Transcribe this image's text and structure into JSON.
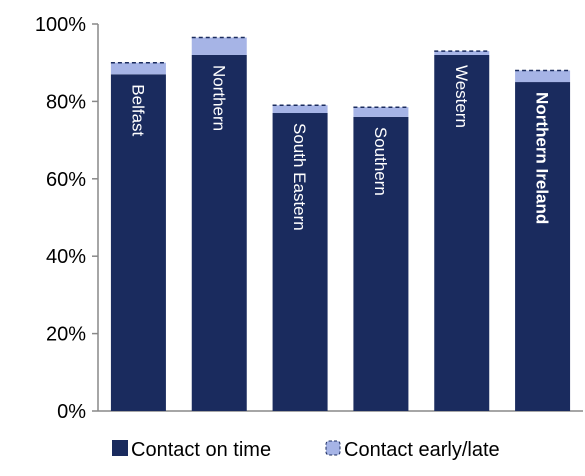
{
  "chart_data": {
    "type": "bar",
    "stacked": true,
    "categories": [
      "Belfast",
      "Northern",
      "South Eastern",
      "Southern",
      "Western",
      "Northern Ireland"
    ],
    "highlight_category": "Northern Ireland",
    "series": [
      {
        "name": "Contact on time",
        "values": [
          87,
          92,
          77,
          76,
          92,
          85
        ],
        "color": "#1a2b5e"
      },
      {
        "name": "Contact early/late",
        "values": [
          3,
          4.5,
          2,
          2.5,
          1,
          3
        ],
        "color": "#a6b4e6"
      }
    ],
    "ylim": [
      0,
      100
    ],
    "y_ticks": [
      "0%",
      "20%",
      "40%",
      "60%",
      "80%",
      "100%"
    ],
    "y_tick_values": [
      0,
      20,
      40,
      60,
      80,
      100
    ],
    "grid": false,
    "legend_position": "bottom",
    "title": "",
    "xlabel": "",
    "ylabel": ""
  }
}
